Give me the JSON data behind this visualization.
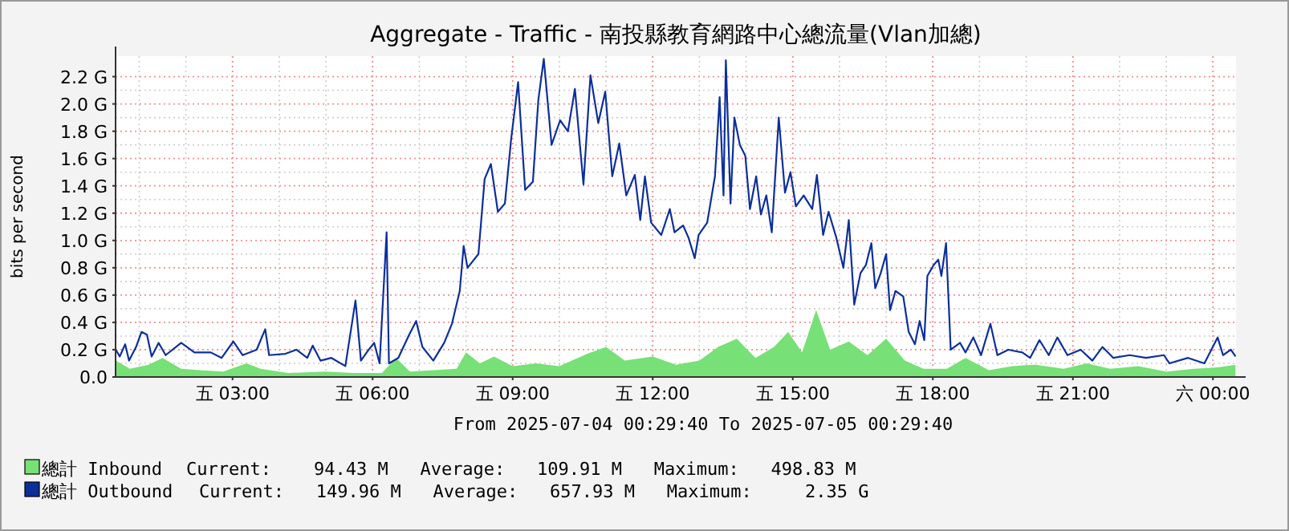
{
  "chart_data": {
    "type": "area",
    "title": "Aggregate - Traffic -  南投縣教育網路中心總流量(Vlan加總)",
    "ylabel": "bits per second",
    "annotations": [
      "From 2025-07-04 00:29:40 To 2025-07-05 00:29:40",
      "Current:    94.43 M   Average:   109.91 M   Maximum:   498.83 M",
      "Current:   149.96 M   Average:   657.93 M   Maximum:     2.35 G"
    ],
    "xlim": [
      "2025-07-04T00:29:40",
      "2025-07-05T00:29:40"
    ],
    "xticks": [
      {
        "value": "2025-07-04T03:00",
        "label": "五 03:00"
      },
      {
        "value": "2025-07-04T06:00",
        "label": "五 06:00"
      },
      {
        "value": "2025-07-04T09:00",
        "label": "五 09:00"
      },
      {
        "value": "2025-07-04T12:00",
        "label": "五 12:00"
      },
      {
        "value": "2025-07-04T15:00",
        "label": "五 15:00"
      },
      {
        "value": "2025-07-04T18:00",
        "label": "五 18:00"
      },
      {
        "value": "2025-07-04T21:00",
        "label": "五 21:00"
      },
      {
        "value": "2025-07-05T00:00",
        "label": "六 00:00"
      }
    ],
    "ylim": [
      0,
      2.35
    ],
    "yticks": [
      {
        "value": 0,
        "label": "0.0"
      },
      {
        "value": 0.2,
        "label": "0.2 G"
      },
      {
        "value": 0.4,
        "label": "0.4 G"
      },
      {
        "value": 0.6,
        "label": "0.6 G"
      },
      {
        "value": 0.8,
        "label": "0.8 G"
      },
      {
        "value": 1.0,
        "label": "1.0 G"
      },
      {
        "value": 1.2,
        "label": "1.2 G"
      },
      {
        "value": 1.4,
        "label": "1.4 G"
      },
      {
        "value": 1.6,
        "label": "1.6 G"
      },
      {
        "value": 1.8,
        "label": "1.8 G"
      },
      {
        "value": 2.0,
        "label": "2.0 G"
      },
      {
        "value": 2.2,
        "label": "2.2 G"
      }
    ],
    "grid": true,
    "legend": "bottom",
    "series": [
      {
        "name": "總計 Inbound",
        "color": "#77e077",
        "x": [
          "2025-07-04T00:30",
          "2025-07-04T00:48",
          "2025-07-04T01:12",
          "2025-07-04T01:30",
          "2025-07-04T01:54",
          "2025-07-04T02:18",
          "2025-07-04T02:48",
          "2025-07-04T03:18",
          "2025-07-04T03:36",
          "2025-07-04T04:12",
          "2025-07-04T05:00",
          "2025-07-04T05:36",
          "2025-07-04T06:12",
          "2025-07-04T06:30",
          "2025-07-04T06:48",
          "2025-07-04T07:18",
          "2025-07-04T07:48",
          "2025-07-04T08:00",
          "2025-07-04T08:18",
          "2025-07-04T08:36",
          "2025-07-04T09:00",
          "2025-07-04T09:30",
          "2025-07-04T10:00",
          "2025-07-04T10:36",
          "2025-07-04T11:00",
          "2025-07-04T11:24",
          "2025-07-04T12:00",
          "2025-07-04T12:30",
          "2025-07-04T13:00",
          "2025-07-04T13:24",
          "2025-07-04T13:48",
          "2025-07-04T14:12",
          "2025-07-04T14:36",
          "2025-07-04T14:54",
          "2025-07-04T15:12",
          "2025-07-04T15:30",
          "2025-07-04T15:48",
          "2025-07-04T16:12",
          "2025-07-04T16:36",
          "2025-07-04T17:00",
          "2025-07-04T17:24",
          "2025-07-04T17:48",
          "2025-07-04T18:18",
          "2025-07-04T18:42",
          "2025-07-04T19:12",
          "2025-07-04T19:42",
          "2025-07-04T20:12",
          "2025-07-04T20:48",
          "2025-07-04T21:18",
          "2025-07-04T21:48",
          "2025-07-04T22:24",
          "2025-07-04T23:00",
          "2025-07-04T23:36",
          "2025-07-05T00:06",
          "2025-07-05T00:29"
        ],
        "values": [
          0.12,
          0.06,
          0.09,
          0.14,
          0.06,
          0.05,
          0.04,
          0.1,
          0.06,
          0.03,
          0.04,
          0.03,
          0.03,
          0.14,
          0.04,
          0.05,
          0.06,
          0.18,
          0.1,
          0.15,
          0.08,
          0.1,
          0.08,
          0.17,
          0.22,
          0.12,
          0.15,
          0.09,
          0.12,
          0.22,
          0.28,
          0.14,
          0.22,
          0.33,
          0.18,
          0.49,
          0.2,
          0.26,
          0.16,
          0.28,
          0.12,
          0.06,
          0.06,
          0.14,
          0.05,
          0.08,
          0.09,
          0.06,
          0.1,
          0.06,
          0.08,
          0.04,
          0.06,
          0.07,
          0.09
        ]
      },
      {
        "name": "總計 Outbound",
        "type": "line",
        "color": "#0c2f9a",
        "x": [
          "2025-07-04T00:30",
          "2025-07-04T00:35",
          "2025-07-04T00:42",
          "2025-07-04T00:47",
          "2025-07-04T00:56",
          "2025-07-04T01:03",
          "2025-07-04T01:10",
          "2025-07-04T01:16",
          "2025-07-04T01:25",
          "2025-07-04T01:34",
          "2025-07-04T01:54",
          "2025-07-04T02:11",
          "2025-07-04T02:32",
          "2025-07-04T02:46",
          "2025-07-04T03:01",
          "2025-07-04T03:13",
          "2025-07-04T03:31",
          "2025-07-04T03:42",
          "2025-07-04T03:47",
          "2025-07-04T04:08",
          "2025-07-04T04:22",
          "2025-07-04T04:36",
          "2025-07-04T04:43",
          "2025-07-04T04:53",
          "2025-07-04T05:07",
          "2025-07-04T05:25",
          "2025-07-04T05:38",
          "2025-07-04T05:45",
          "2025-07-04T05:55",
          "2025-07-04T06:02",
          "2025-07-04T06:09",
          "2025-07-04T06:18",
          "2025-07-04T06:21",
          "2025-07-04T06:33",
          "2025-07-04T06:47",
          "2025-07-04T06:56",
          "2025-07-04T07:04",
          "2025-07-04T07:18",
          "2025-07-04T07:32",
          "2025-07-04T07:42",
          "2025-07-04T07:52",
          "2025-07-04T07:57",
          "2025-07-04T08:02",
          "2025-07-04T08:16",
          "2025-07-04T08:24",
          "2025-07-04T08:32",
          "2025-07-04T08:41",
          "2025-07-04T08:50",
          "2025-07-04T08:58",
          "2025-07-04T09:07",
          "2025-07-04T09:16",
          "2025-07-04T09:26",
          "2025-07-04T09:33",
          "2025-07-04T09:40",
          "2025-07-04T09:50",
          "2025-07-04T10:01",
          "2025-07-04T10:11",
          "2025-07-04T10:20",
          "2025-07-04T10:31",
          "2025-07-04T10:40",
          "2025-07-04T10:50",
          "2025-07-04T10:59",
          "2025-07-04T11:08",
          "2025-07-04T11:17",
          "2025-07-04T11:26",
          "2025-07-04T11:37",
          "2025-07-04T11:44",
          "2025-07-04T11:50",
          "2025-07-04T11:58",
          "2025-07-04T12:11",
          "2025-07-04T12:22",
          "2025-07-04T12:28",
          "2025-07-04T12:39",
          "2025-07-04T12:46",
          "2025-07-04T12:54",
          "2025-07-04T12:59",
          "2025-07-04T13:10",
          "2025-07-04T13:20",
          "2025-07-04T13:26",
          "2025-07-04T13:31",
          "2025-07-04T13:34",
          "2025-07-04T13:40",
          "2025-07-04T13:45",
          "2025-07-04T13:52",
          "2025-07-04T13:59",
          "2025-07-04T14:05",
          "2025-07-04T14:13",
          "2025-07-04T14:19",
          "2025-07-04T14:26",
          "2025-07-04T14:33",
          "2025-07-04T14:42",
          "2025-07-04T14:50",
          "2025-07-04T14:57",
          "2025-07-04T15:04",
          "2025-07-04T15:14",
          "2025-07-04T15:25",
          "2025-07-04T15:31",
          "2025-07-04T15:39",
          "2025-07-04T15:46",
          "2025-07-04T15:56",
          "2025-07-04T16:05",
          "2025-07-04T16:12",
          "2025-07-04T16:19",
          "2025-07-04T16:27",
          "2025-07-04T16:34",
          "2025-07-04T16:41",
          "2025-07-04T16:46",
          "2025-07-04T16:53",
          "2025-07-04T17:00",
          "2025-07-04T17:05",
          "2025-07-04T17:12",
          "2025-07-04T17:22",
          "2025-07-04T17:29",
          "2025-07-04T17:37",
          "2025-07-04T17:43",
          "2025-07-04T17:49",
          "2025-07-04T17:53",
          "2025-07-04T18:01",
          "2025-07-04T18:07",
          "2025-07-04T18:11",
          "2025-07-04T18:17",
          "2025-07-04T18:23",
          "2025-07-04T18:35",
          "2025-07-04T18:42",
          "2025-07-04T18:52",
          "2025-07-04T19:02",
          "2025-07-04T19:14",
          "2025-07-04T19:23",
          "2025-07-04T19:37",
          "2025-07-04T19:55",
          "2025-07-04T20:05",
          "2025-07-04T20:17",
          "2025-07-04T20:29",
          "2025-07-04T20:40",
          "2025-07-04T20:53",
          "2025-07-04T21:10",
          "2025-07-04T21:25",
          "2025-07-04T21:38",
          "2025-07-04T21:52",
          "2025-07-04T22:13",
          "2025-07-04T22:34",
          "2025-07-04T22:57",
          "2025-07-04T23:04",
          "2025-07-04T23:28",
          "2025-07-04T23:49",
          "2025-07-05T00:06",
          "2025-07-05T00:13",
          "2025-07-05T00:23",
          "2025-07-05T00:29"
        ],
        "values": [
          0.2,
          0.15,
          0.24,
          0.12,
          0.22,
          0.33,
          0.31,
          0.15,
          0.25,
          0.16,
          0.25,
          0.18,
          0.18,
          0.14,
          0.26,
          0.16,
          0.2,
          0.35,
          0.16,
          0.17,
          0.2,
          0.14,
          0.23,
          0.12,
          0.14,
          0.08,
          0.56,
          0.12,
          0.2,
          0.25,
          0.1,
          1.06,
          0.1,
          0.14,
          0.31,
          0.41,
          0.22,
          0.12,
          0.25,
          0.39,
          0.63,
          0.96,
          0.8,
          0.9,
          1.45,
          1.56,
          1.21,
          1.27,
          1.74,
          2.16,
          1.37,
          1.43,
          2.03,
          2.33,
          1.7,
          1.88,
          1.8,
          2.11,
          1.41,
          2.21,
          1.86,
          2.09,
          1.47,
          1.71,
          1.33,
          1.48,
          1.15,
          1.47,
          1.13,
          1.04,
          1.23,
          1.06,
          1.11,
          1.02,
          0.87,
          1.04,
          1.13,
          1.47,
          2.05,
          1.33,
          2.32,
          1.27,
          1.9,
          1.7,
          1.62,
          1.23,
          1.47,
          1.19,
          1.33,
          1.06,
          1.9,
          1.35,
          1.5,
          1.25,
          1.33,
          1.23,
          1.48,
          1.04,
          1.21,
          1.02,
          0.8,
          1.15,
          0.53,
          0.76,
          0.82,
          0.98,
          0.65,
          0.76,
          0.9,
          0.49,
          0.63,
          0.59,
          0.33,
          0.24,
          0.41,
          0.27,
          0.74,
          0.82,
          0.86,
          0.74,
          0.98,
          0.2,
          0.25,
          0.18,
          0.29,
          0.16,
          0.39,
          0.16,
          0.2,
          0.18,
          0.14,
          0.27,
          0.16,
          0.29,
          0.16,
          0.2,
          0.12,
          0.22,
          0.14,
          0.16,
          0.14,
          0.16,
          0.1,
          0.14,
          0.1,
          0.29,
          0.16,
          0.2,
          0.15
        ]
      }
    ]
  }
}
